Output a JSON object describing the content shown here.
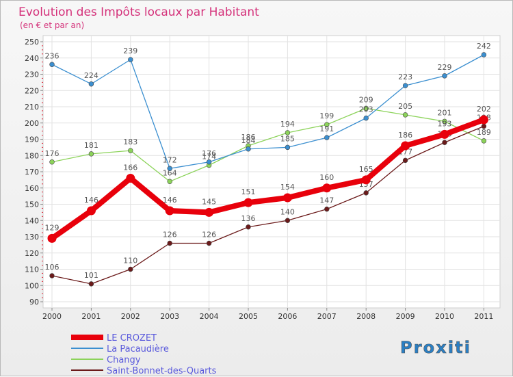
{
  "chart_data": {
    "type": "line",
    "title": "Evolution des Impôts locaux par Habitant",
    "subtitle": "(en € et par an)",
    "categories": [
      "2000",
      "2001",
      "2002",
      "2003",
      "2004",
      "2005",
      "2006",
      "2007",
      "2008",
      "2009",
      "2010",
      "2011"
    ],
    "ylim": [
      90,
      250
    ],
    "yticks": [
      90,
      100,
      110,
      120,
      130,
      140,
      150,
      160,
      170,
      180,
      190,
      200,
      210,
      220,
      230,
      240,
      250
    ],
    "grid": true,
    "legend_position": "bottom-left",
    "series": [
      {
        "name": "LE CROZET",
        "color": "#e8000b",
        "values": [
          129,
          146,
          166,
          146,
          145,
          151,
          154,
          160,
          165,
          186,
          193,
          202
        ]
      },
      {
        "name": "La Pacaudière",
        "color": "#3b8fd0",
        "values": [
          236,
          224,
          239,
          172,
          176,
          184,
          185,
          191,
          203,
          223,
          229,
          242
        ]
      },
      {
        "name": "Changy",
        "color": "#8cd35a",
        "values": [
          176,
          181,
          183,
          164,
          174,
          186,
          194,
          199,
          209,
          205,
          201,
          189
        ]
      },
      {
        "name": "Saint-Bonnet-des-Quarts",
        "color": "#6b1a1a",
        "values": [
          106,
          101,
          110,
          126,
          126,
          136,
          140,
          147,
          157,
          177,
          188,
          198
        ]
      }
    ]
  },
  "logo": {
    "text": "Proxiti"
  }
}
